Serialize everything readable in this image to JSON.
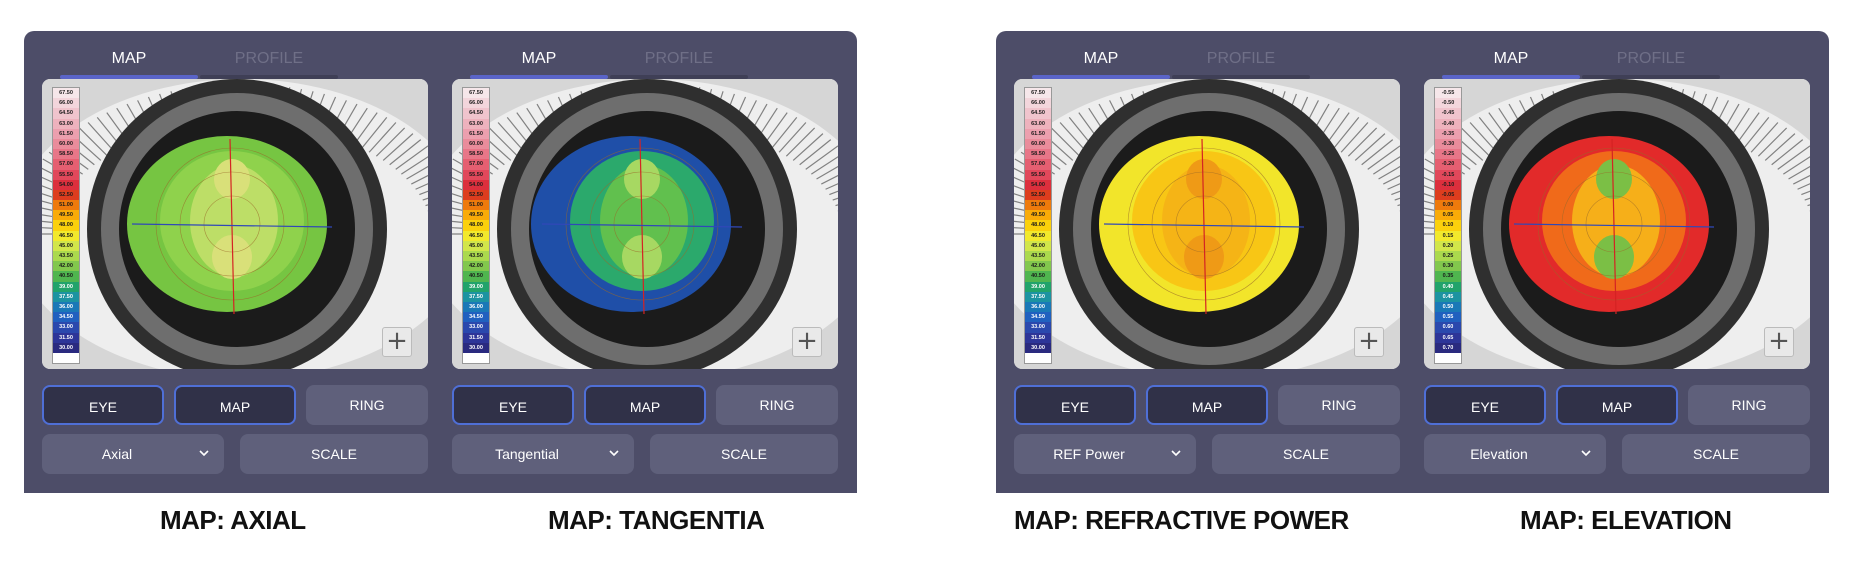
{
  "tabs": {
    "map": "MAP",
    "profile": "PROFILE"
  },
  "buttons": {
    "eye": "EYE",
    "map": "MAP",
    "ring": "RING",
    "scale": "SCALE"
  },
  "zoom_symbol": "+",
  "scales": {
    "power": [
      "67.50",
      "66.00",
      "64.50",
      "63.00",
      "61.50",
      "60.00",
      "58.50",
      "57.00",
      "55.50",
      "54.00",
      "52.50",
      "51.00",
      "49.50",
      "48.00",
      "46.50",
      "45.00",
      "43.50",
      "42.00",
      "40.50",
      "39.00",
      "37.50",
      "36.00",
      "34.50",
      "33.00",
      "31.50",
      "30.00"
    ],
    "elevation": [
      "-0.55",
      "-0.50",
      "-0.45",
      "-0.40",
      "-0.35",
      "-0.30",
      "-0.25",
      "-0.20",
      "-0.15",
      "-0.10",
      "-0.05",
      "0.00",
      "0.05",
      "0.10",
      "0.15",
      "0.20",
      "0.25",
      "0.30",
      "0.35",
      "0.40",
      "0.45",
      "0.50",
      "0.55",
      "0.60",
      "0.65",
      "0.70"
    ]
  },
  "scale_colors": [
    "#f6e7ea",
    "#f3d6dc",
    "#f0c4cd",
    "#eeb2bd",
    "#ec9fae",
    "#ea8c9b",
    "#e87688",
    "#e55f71",
    "#e1485b",
    "#dc2f3d",
    "#dd3d1e",
    "#ee7a0c",
    "#f9ab08",
    "#fbd10c",
    "#f2e92c",
    "#d2e64a",
    "#abd94d",
    "#82c74d",
    "#4fb54f",
    "#21a36b",
    "#1c93a1",
    "#1a78b7",
    "#2060bf",
    "#2a48ad",
    "#2d3598",
    "#2a2a7f"
  ],
  "maps": [
    {
      "dropdown": "Axial",
      "caption": "MAP: AXIAL"
    },
    {
      "dropdown": "Tangential",
      "caption": "MAP: TANGENTIA"
    },
    {
      "dropdown": "REF Power",
      "caption": "MAP: REFRACTIVE POWER"
    },
    {
      "dropdown": "Elevation",
      "caption": "MAP: ELEVATION"
    }
  ],
  "icons": {
    "zoom": "plus-icon",
    "dropdown": "chevron-down-icon"
  }
}
